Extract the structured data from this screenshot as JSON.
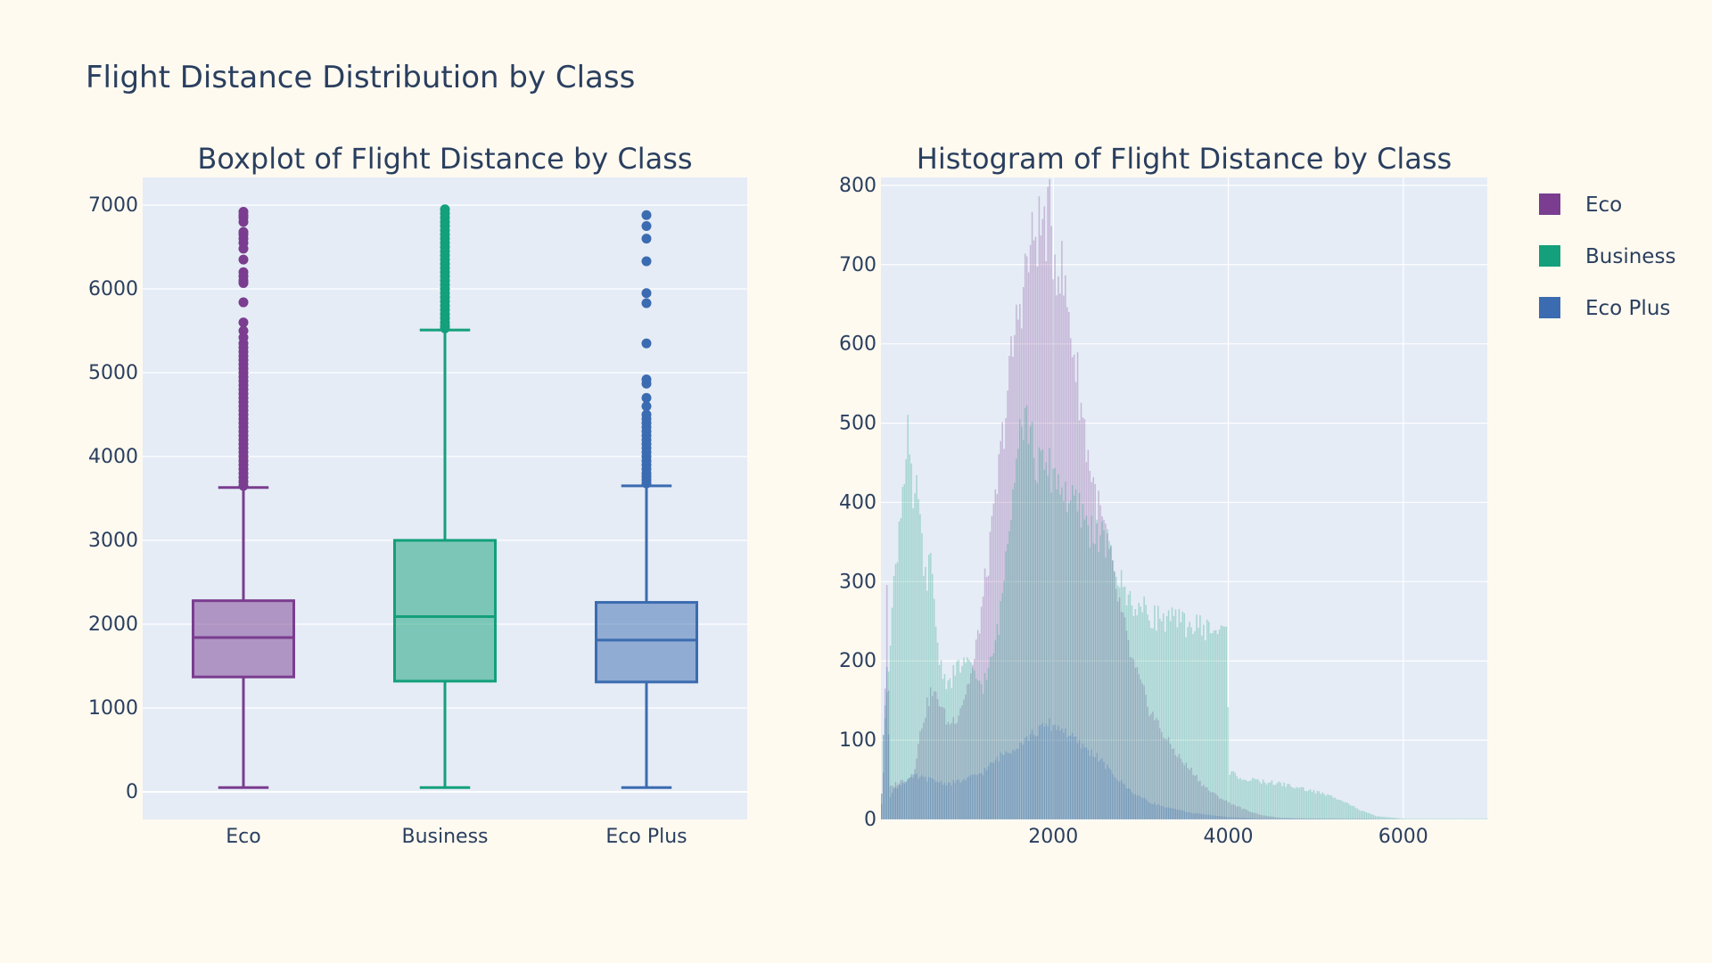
{
  "main_title": "Flight Distance Distribution by Class",
  "colors": {
    "paper_bg": "#fffaf0",
    "plot_bg": "#e5ecf6",
    "grid": "#ffffff",
    "text": "#2a3f5f",
    "Eco": "#7a3d8f",
    "Business": "#13a07a",
    "Eco Plus": "#3b6bb0"
  },
  "legend": {
    "placement": "top-right",
    "entries": [
      "Eco",
      "Business",
      "Eco Plus"
    ]
  },
  "chart_data": [
    {
      "type": "box",
      "title": "Boxplot of Flight Distance by Class",
      "xlabel": "",
      "ylabel": "",
      "categories": [
        "Eco",
        "Business",
        "Eco Plus"
      ],
      "ylim": [
        -330,
        7330
      ],
      "yticks": [
        0,
        1000,
        2000,
        3000,
        4000,
        5000,
        6000,
        7000
      ],
      "grid": true,
      "series": [
        {
          "name": "Eco",
          "whisker_low": 50,
          "q1": 1370,
          "median": 1840,
          "q3": 2280,
          "whisker_high": 3630,
          "outliers": [
            3650,
            3700,
            3750,
            3800,
            3850,
            3900,
            3950,
            4000,
            4050,
            4100,
            4150,
            4200,
            4250,
            4300,
            4350,
            4400,
            4450,
            4500,
            4550,
            4600,
            4650,
            4700,
            4750,
            4800,
            4850,
            4900,
            4950,
            5000,
            5050,
            5100,
            5150,
            5200,
            5250,
            5300,
            5350,
            5420,
            5500,
            5600,
            5840,
            6070,
            6100,
            6150,
            6200,
            6350,
            6480,
            6550,
            6600,
            6650,
            6680,
            6800,
            6850,
            6880,
            6920
          ]
        },
        {
          "name": "Business",
          "whisker_low": 50,
          "q1": 1320,
          "median": 2090,
          "q3": 3000,
          "whisker_high": 5510,
          "outliers": [
            5530,
            5560,
            5600,
            5650,
            5700,
            5750,
            5800,
            5850,
            5900,
            5950,
            6000,
            6050,
            6100,
            6150,
            6200,
            6250,
            6300,
            6350,
            6400,
            6450,
            6500,
            6550,
            6600,
            6650,
            6700,
            6750,
            6800,
            6850,
            6900,
            6950
          ]
        },
        {
          "name": "Eco Plus",
          "whisker_low": 50,
          "q1": 1310,
          "median": 1810,
          "q3": 2260,
          "whisker_high": 3650,
          "outliers": [
            3680,
            3720,
            3760,
            3800,
            3850,
            3900,
            3950,
            4000,
            4050,
            4100,
            4150,
            4200,
            4250,
            4300,
            4350,
            4400,
            4450,
            4500,
            4600,
            4700,
            4870,
            4920,
            5350,
            5830,
            5950,
            6330,
            6600,
            6750,
            6880
          ]
        }
      ]
    },
    {
      "type": "histogram",
      "title": "Histogram of Flight Distance by Class",
      "xlabel": "",
      "ylabel": "",
      "xlim": [
        30,
        6960
      ],
      "xticks": [
        2000,
        4000,
        6000
      ],
      "ylim": [
        0,
        810
      ],
      "yticks": [
        0,
        100,
        200,
        300,
        400,
        500,
        600,
        700,
        800
      ],
      "grid": true,
      "bin_width": 20,
      "overlay": true,
      "series": [
        {
          "name": "Eco",
          "profile": [
            [
              30,
              0
            ],
            [
              60,
              60
            ],
            [
              100,
              280
            ],
            [
              140,
              40
            ],
            [
              200,
              45
            ],
            [
              300,
              50
            ],
            [
              400,
              55
            ],
            [
              500,
              120
            ],
            [
              600,
              160
            ],
            [
              700,
              150
            ],
            [
              800,
              120
            ],
            [
              900,
              130
            ],
            [
              1000,
              160
            ],
            [
              1100,
              200
            ],
            [
              1200,
              280
            ],
            [
              1300,
              360
            ],
            [
              1400,
              460
            ],
            [
              1500,
              560
            ],
            [
              1600,
              640
            ],
            [
              1700,
              700
            ],
            [
              1800,
              740
            ],
            [
              1900,
              750
            ],
            [
              1960,
              755
            ],
            [
              2000,
              720
            ],
            [
              2100,
              690
            ],
            [
              2200,
              620
            ],
            [
              2300,
              540
            ],
            [
              2400,
              460
            ],
            [
              2500,
              400
            ],
            [
              2600,
              360
            ],
            [
              2700,
              300
            ],
            [
              2800,
              250
            ],
            [
              2900,
              200
            ],
            [
              3000,
              170
            ],
            [
              3100,
              140
            ],
            [
              3200,
              120
            ],
            [
              3300,
              100
            ],
            [
              3400,
              85
            ],
            [
              3500,
              70
            ],
            [
              3600,
              60
            ],
            [
              3700,
              45
            ],
            [
              3800,
              35
            ],
            [
              3900,
              28
            ],
            [
              4000,
              22
            ],
            [
              4200,
              12
            ],
            [
              4400,
              5
            ],
            [
              4600,
              2
            ],
            [
              5000,
              1
            ],
            [
              6960,
              0
            ]
          ]
        },
        {
          "name": "Business",
          "profile": [
            [
              30,
              0
            ],
            [
              60,
              100
            ],
            [
              150,
              250
            ],
            [
              200,
              320
            ],
            [
              280,
              420
            ],
            [
              340,
              500
            ],
            [
              400,
              380
            ],
            [
              460,
              420
            ],
            [
              520,
              300
            ],
            [
              600,
              320
            ],
            [
              700,
              200
            ],
            [
              800,
              170
            ],
            [
              900,
              190
            ],
            [
              1000,
              200
            ],
            [
              1100,
              180
            ],
            [
              1200,
              170
            ],
            [
              1300,
              200
            ],
            [
              1400,
              260
            ],
            [
              1500,
              380
            ],
            [
              1600,
              500
            ],
            [
              1700,
              510
            ],
            [
              1800,
              450
            ],
            [
              1900,
              440
            ],
            [
              2000,
              440
            ],
            [
              2100,
              420
            ],
            [
              2200,
              400
            ],
            [
              2300,
              390
            ],
            [
              2400,
              370
            ],
            [
              2500,
              360
            ],
            [
              2600,
              350
            ],
            [
              2700,
              320
            ],
            [
              2800,
              290
            ],
            [
              2900,
              275
            ],
            [
              3000,
              265
            ],
            [
              3200,
              255
            ],
            [
              3400,
              250
            ],
            [
              3600,
              245
            ],
            [
              3800,
              240
            ],
            [
              3980,
              235
            ],
            [
              4020,
              60
            ],
            [
              4200,
              50
            ],
            [
              4600,
              45
            ],
            [
              5000,
              35
            ],
            [
              5300,
              25
            ],
            [
              5500,
              12
            ],
            [
              5700,
              4
            ],
            [
              6000,
              1
            ],
            [
              6960,
              1
            ]
          ]
        },
        {
          "name": "Eco Plus",
          "profile": [
            [
              30,
              0
            ],
            [
              60,
              100
            ],
            [
              100,
              200
            ],
            [
              140,
              30
            ],
            [
              200,
              40
            ],
            [
              400,
              55
            ],
            [
              600,
              50
            ],
            [
              800,
              45
            ],
            [
              1000,
              50
            ],
            [
              1200,
              60
            ],
            [
              1400,
              80
            ],
            [
              1600,
              95
            ],
            [
              1800,
              110
            ],
            [
              1950,
              120
            ],
            [
              2100,
              115
            ],
            [
              2300,
              95
            ],
            [
              2500,
              80
            ],
            [
              2700,
              55
            ],
            [
              2900,
              35
            ],
            [
              3100,
              22
            ],
            [
              3300,
              15
            ],
            [
              3600,
              8
            ],
            [
              4000,
              3
            ],
            [
              4400,
              1
            ],
            [
              6960,
              0
            ]
          ]
        }
      ]
    }
  ]
}
